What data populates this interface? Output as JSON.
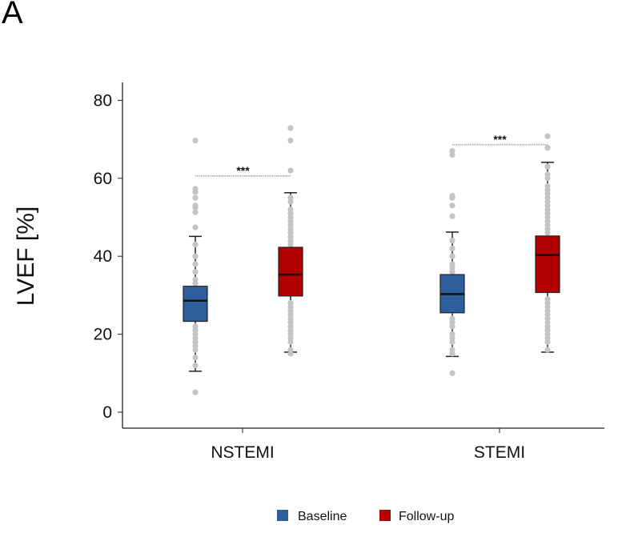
{
  "panel_label": "A",
  "chart_data": {
    "type": "box",
    "title": "",
    "xlabel": "",
    "ylabel": "LVEF [%]",
    "ylim": [
      0,
      85
    ],
    "yticks": [
      0,
      20,
      40,
      60,
      80
    ],
    "grid": false,
    "categories": [
      "NSTEMI",
      "STEMI"
    ],
    "legend": {
      "placement": "bottom",
      "entries": [
        "Baseline",
        "Follow-up"
      ]
    },
    "colors": {
      "Baseline": "#2e5e9c",
      "Follow-up": "#b20000",
      "points": "#c4c4c4"
    },
    "series": [
      {
        "name": "Baseline",
        "boxes": [
          {
            "category": "NSTEMI",
            "whisker_low": 10.5,
            "q1": 23.3,
            "median": 28.6,
            "q3": 32.3,
            "whisker_high": 45.1,
            "outliers": [
              69.7,
              57.3,
              56.5,
              55,
              53,
              52.5,
              51.3,
              47.4,
              5.1
            ],
            "points": [
              43,
              40,
              38,
              36,
              34,
              33,
              31,
              30,
              29,
              27,
              26,
              25,
              24,
              22,
              21,
              20,
              19,
              18,
              17,
              16,
              14,
              12
            ]
          },
          {
            "category": "STEMI",
            "whisker_low": 14.3,
            "q1": 25.5,
            "median": 30.3,
            "q3": 35.3,
            "whisker_high": 46.2,
            "outliers": [
              67,
              66,
              55.5,
              55,
              53,
              50.3,
              10
            ],
            "points": [
              44,
              42,
              40,
              38,
              37,
              36,
              34,
              32,
              31,
              29,
              28,
              27,
              26,
              24,
              23,
              22,
              20,
              19,
              18,
              16,
              15
            ]
          }
        ]
      },
      {
        "name": "Follow-up",
        "boxes": [
          {
            "category": "NSTEMI",
            "whisker_low": 15.4,
            "q1": 29.8,
            "median": 35.3,
            "q3": 42.3,
            "whisker_high": 56.3,
            "outliers": [
              72.9,
              69.7,
              62
            ],
            "points": [
              55,
              54,
              52,
              51,
              50,
              49,
              48,
              47,
              46,
              45,
              44,
              43,
              41,
              39,
              37,
              33,
              31,
              28,
              27,
              26,
              25,
              24,
              23,
              22,
              21,
              20,
              19,
              18,
              16,
              15
            ]
          },
          {
            "category": "STEMI",
            "whisker_low": 15.4,
            "q1": 30.7,
            "median": 40.3,
            "q3": 45.2,
            "whisker_high": 64.1,
            "outliers": [
              70.8,
              67.8
            ],
            "points": [
              63,
              61,
              60,
              58,
              57,
              56,
              55,
              54,
              53,
              52,
              51,
              50,
              49,
              48,
              47,
              46,
              43,
              38,
              34,
              29,
              28,
              27,
              26,
              25,
              24,
              23,
              22,
              21,
              20,
              19,
              18,
              16
            ]
          }
        ]
      }
    ],
    "annotations": [
      {
        "category": "NSTEMI",
        "text": "***",
        "y": 60.6
      },
      {
        "category": "STEMI",
        "text": "***",
        "y": 68.6
      }
    ]
  }
}
